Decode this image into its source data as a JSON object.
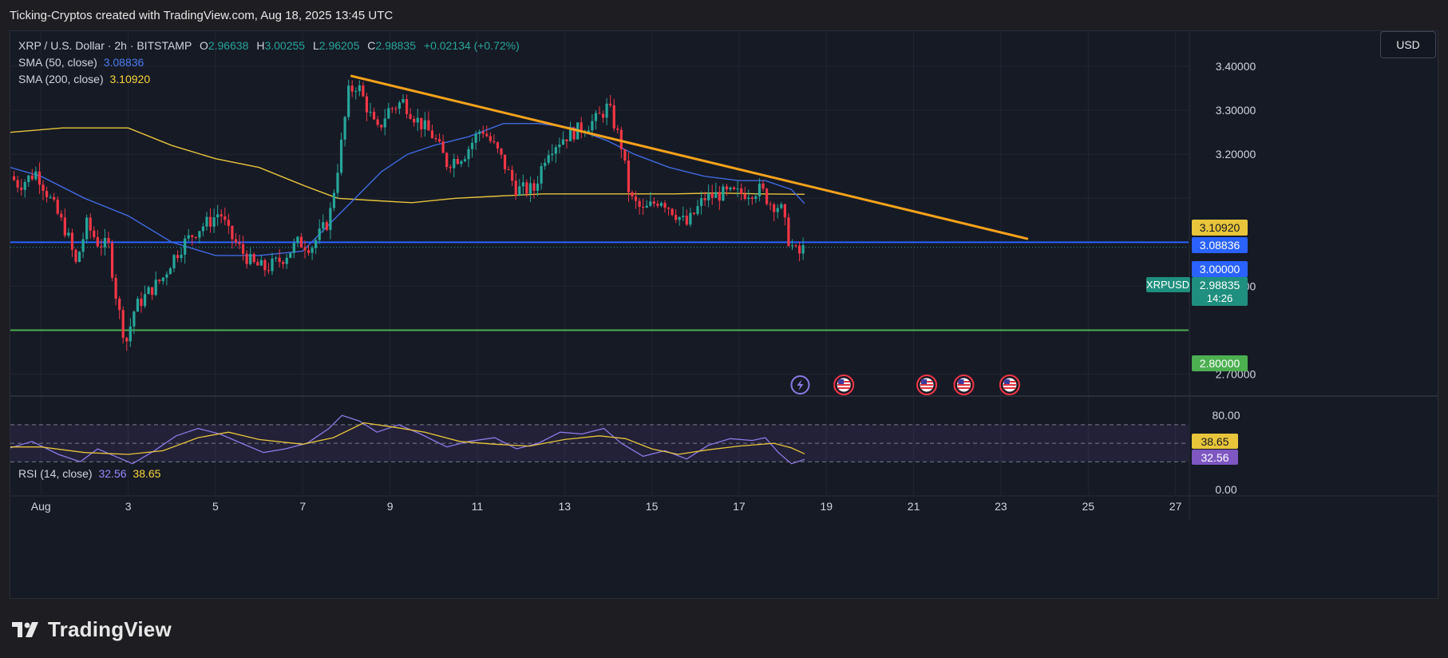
{
  "attribution": "Ticking-Cryptos created with TradingView.com, Aug 18, 2025 13:45 UTC",
  "brand": "TradingView",
  "currency_button": "USD",
  "legend": {
    "symbol": "XRP / U.S. Dollar · 2h · BITSTAMP",
    "o_label": "O",
    "o_value": "2.96638",
    "h_label": "H",
    "h_value": "3.00255",
    "l_label": "L",
    "l_value": "2.96205",
    "c_label": "C",
    "c_value": "2.98835",
    "change": "+0.02134 (+0.72%)",
    "sma50_label": "SMA (50, close)",
    "sma50_value": "3.08836",
    "sma200_label": "SMA (200, close)",
    "sma200_value": "3.10920"
  },
  "rsi_legend": {
    "label": "RSI (14, close)",
    "rsi_value": "32.56",
    "ma_value": "38.65"
  },
  "colors": {
    "background": "#161a25",
    "up": "#26a69a",
    "down": "#f23645",
    "sma50": "#3f6ae0",
    "sma200": "#e8c53a",
    "trendline": "#f7a21b",
    "support_blue": "#2962ff",
    "support_green": "#4caf50",
    "rsi": "#8c7ae6"
  },
  "event_icons": [
    "lightning-icon",
    "us-flag-icon",
    "us-flag-icon",
    "us-flag-icon",
    "us-flag-icon"
  ],
  "chart_data": {
    "type": "candlestick",
    "symbol": "XRPUSD",
    "timeframe": "2h",
    "x_ticks": [
      "Aug",
      "3",
      "5",
      "7",
      "9",
      "11",
      "13",
      "15",
      "17",
      "19",
      "21",
      "23",
      "25",
      "27"
    ],
    "x_tick_days": [
      1,
      3,
      5,
      7,
      9,
      11,
      13,
      15,
      17,
      19,
      21,
      23,
      25,
      27
    ],
    "x_range_days": [
      0.3,
      27.3
    ],
    "y_ticks": [
      "3.40000",
      "3.30000",
      "3.20000",
      "2.90000",
      "2.70000"
    ],
    "y_tick_values": [
      3.4,
      3.3,
      3.2,
      2.9,
      2.7
    ],
    "ylim": [
      2.652,
      3.48
    ],
    "price_labels": [
      {
        "text": "3.10920",
        "value": 3.1092,
        "role": "sma200"
      },
      {
        "text": "3.08836",
        "value": 3.08836,
        "role": "sma50"
      },
      {
        "text": "3.00000",
        "value": 3.0,
        "role": "level"
      },
      {
        "text": "2.98835",
        "value": 2.98835,
        "role": "last",
        "tag": "XRPUSD",
        "countdown": "14:26"
      },
      {
        "text": "2.80000",
        "value": 2.8,
        "role": "support"
      }
    ],
    "horizontal_levels": [
      {
        "value": 3.0,
        "color": "blue"
      },
      {
        "value": 2.8,
        "color": "green"
      }
    ],
    "trendline": {
      "start_day": 8.12,
      "start_price": 3.378,
      "end_day": 23.6,
      "end_price": 3.008
    },
    "price_path": [
      [
        0.3,
        3.15
      ],
      [
        0.5,
        3.13
      ],
      [
        0.9,
        3.16
      ],
      [
        1.3,
        3.08
      ],
      [
        1.6,
        3.02
      ],
      [
        1.8,
        2.95
      ],
      [
        2.05,
        3.04
      ],
      [
        2.3,
        3.0
      ],
      [
        2.55,
        2.99
      ],
      [
        2.75,
        2.86
      ],
      [
        2.95,
        2.77
      ],
      [
        3.15,
        2.85
      ],
      [
        3.5,
        2.89
      ],
      [
        3.8,
        2.92
      ],
      [
        4.0,
        2.96
      ],
      [
        4.3,
        3.0
      ],
      [
        4.6,
        3.03
      ],
      [
        4.9,
        3.05
      ],
      [
        5.1,
        3.07
      ],
      [
        5.3,
        3.02
      ],
      [
        5.6,
        2.98
      ],
      [
        5.85,
        2.95
      ],
      [
        6.15,
        2.94
      ],
      [
        6.5,
        2.96
      ],
      [
        6.9,
        3.0
      ],
      [
        7.2,
        2.99
      ],
      [
        7.6,
        3.05
      ],
      [
        7.85,
        3.2
      ],
      [
        8.05,
        3.34
      ],
      [
        8.25,
        3.36
      ],
      [
        8.5,
        3.3
      ],
      [
        8.7,
        3.25
      ],
      [
        8.95,
        3.3
      ],
      [
        9.3,
        3.32
      ],
      [
        9.6,
        3.28
      ],
      [
        10.0,
        3.24
      ],
      [
        10.3,
        3.18
      ],
      [
        10.7,
        3.2
      ],
      [
        11.1,
        3.26
      ],
      [
        11.5,
        3.2
      ],
      [
        11.9,
        3.12
      ],
      [
        12.3,
        3.12
      ],
      [
        12.6,
        3.21
      ],
      [
        13.0,
        3.24
      ],
      [
        13.4,
        3.26
      ],
      [
        13.75,
        3.28
      ],
      [
        14.0,
        3.31
      ],
      [
        14.3,
        3.22
      ],
      [
        14.5,
        3.1
      ],
      [
        14.8,
        3.07
      ],
      [
        15.2,
        3.1
      ],
      [
        15.5,
        3.07
      ],
      [
        15.8,
        3.04
      ],
      [
        16.2,
        3.1
      ],
      [
        16.6,
        3.11
      ],
      [
        17.0,
        3.11
      ],
      [
        17.5,
        3.12
      ],
      [
        17.7,
        3.09
      ],
      [
        17.95,
        3.08
      ],
      [
        18.15,
        3.0
      ],
      [
        18.35,
        2.97
      ],
      [
        18.5,
        2.988
      ]
    ],
    "sma50": [
      [
        0.3,
        3.17
      ],
      [
        1.0,
        3.15
      ],
      [
        2.0,
        3.1
      ],
      [
        3.0,
        3.06
      ],
      [
        4.0,
        3.0
      ],
      [
        5.0,
        2.97
      ],
      [
        6.0,
        2.97
      ],
      [
        7.0,
        2.98
      ],
      [
        7.6,
        3.04
      ],
      [
        8.2,
        3.1
      ],
      [
        8.8,
        3.16
      ],
      [
        9.4,
        3.2
      ],
      [
        10.0,
        3.22
      ],
      [
        10.8,
        3.24
      ],
      [
        11.6,
        3.27
      ],
      [
        12.4,
        3.27
      ],
      [
        13.2,
        3.26
      ],
      [
        14.0,
        3.23
      ],
      [
        14.6,
        3.2
      ],
      [
        15.4,
        3.17
      ],
      [
        16.2,
        3.15
      ],
      [
        17.0,
        3.14
      ],
      [
        17.6,
        3.14
      ],
      [
        18.2,
        3.12
      ],
      [
        18.5,
        3.088
      ]
    ],
    "sma200": [
      [
        0.3,
        3.25
      ],
      [
        1.5,
        3.26
      ],
      [
        3.0,
        3.26
      ],
      [
        4.0,
        3.22
      ],
      [
        5.0,
        3.19
      ],
      [
        6.0,
        3.17
      ],
      [
        7.0,
        3.13
      ],
      [
        7.8,
        3.1
      ],
      [
        8.6,
        3.095
      ],
      [
        9.5,
        3.09
      ],
      [
        10.5,
        3.1
      ],
      [
        11.5,
        3.105
      ],
      [
        12.5,
        3.11
      ],
      [
        13.5,
        3.11
      ],
      [
        14.5,
        3.11
      ],
      [
        15.5,
        3.11
      ],
      [
        16.5,
        3.112
      ],
      [
        17.5,
        3.11
      ],
      [
        18.5,
        3.109
      ]
    ],
    "rsi": {
      "ylim": [
        -5,
        100
      ],
      "y_ticks": [
        "80.00",
        "0.00"
      ],
      "y_tick_values": [
        80,
        0
      ],
      "bands": [
        70,
        50,
        30
      ],
      "value_labels": [
        {
          "text": "38.65",
          "value": 38.65,
          "role": "rsi-ma"
        },
        {
          "text": "32.56",
          "value": 32.56,
          "role": "rsi"
        }
      ],
      "rsi_path": [
        [
          0.3,
          45
        ],
        [
          0.8,
          52
        ],
        [
          1.4,
          38
        ],
        [
          1.9,
          30
        ],
        [
          2.3,
          44
        ],
        [
          2.8,
          34
        ],
        [
          3.1,
          28
        ],
        [
          3.6,
          42
        ],
        [
          4.1,
          58
        ],
        [
          4.6,
          66
        ],
        [
          5.1,
          60
        ],
        [
          5.6,
          50
        ],
        [
          6.1,
          40
        ],
        [
          6.6,
          44
        ],
        [
          7.1,
          50
        ],
        [
          7.6,
          66
        ],
        [
          7.9,
          80
        ],
        [
          8.3,
          74
        ],
        [
          8.7,
          62
        ],
        [
          9.2,
          70
        ],
        [
          9.7,
          60
        ],
        [
          10.3,
          46
        ],
        [
          10.8,
          52
        ],
        [
          11.4,
          56
        ],
        [
          11.9,
          44
        ],
        [
          12.4,
          50
        ],
        [
          12.9,
          62
        ],
        [
          13.4,
          60
        ],
        [
          13.9,
          66
        ],
        [
          14.3,
          50
        ],
        [
          14.8,
          36
        ],
        [
          15.3,
          42
        ],
        [
          15.8,
          33
        ],
        [
          16.3,
          48
        ],
        [
          16.8,
          55
        ],
        [
          17.3,
          53
        ],
        [
          17.6,
          56
        ],
        [
          17.9,
          40
        ],
        [
          18.2,
          28
        ],
        [
          18.5,
          32.56
        ]
      ],
      "ma_path": [
        [
          0.3,
          46
        ],
        [
          1.0,
          46
        ],
        [
          2.0,
          40
        ],
        [
          3.0,
          38
        ],
        [
          3.8,
          42
        ],
        [
          4.6,
          56
        ],
        [
          5.3,
          62
        ],
        [
          6.0,
          54
        ],
        [
          7.0,
          49
        ],
        [
          7.7,
          56
        ],
        [
          8.4,
          72
        ],
        [
          9.0,
          68
        ],
        [
          9.8,
          62
        ],
        [
          10.6,
          52
        ],
        [
          11.4,
          49
        ],
        [
          12.2,
          47
        ],
        [
          13.0,
          54
        ],
        [
          13.8,
          58
        ],
        [
          14.4,
          55
        ],
        [
          15.0,
          44
        ],
        [
          15.6,
          38
        ],
        [
          16.3,
          43
        ],
        [
          17.0,
          47
        ],
        [
          17.8,
          50
        ],
        [
          18.2,
          45
        ],
        [
          18.5,
          38.65
        ]
      ]
    }
  }
}
